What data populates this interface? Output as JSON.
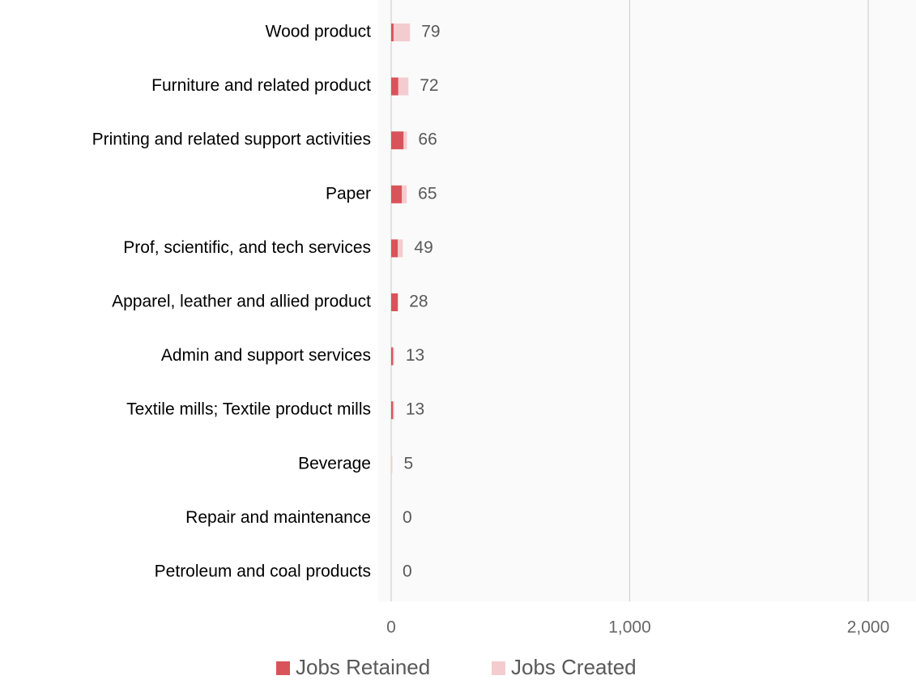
{
  "chart_data": {
    "type": "stacked_barh",
    "categories": [
      "Wood product",
      "Furniture and related product",
      "Printing and related support activities",
      "Paper",
      "Prof, scientific, and tech services",
      "Apparel, leather and allied product",
      "Admin and support services",
      "Textile mills; Textile product mills",
      "Beverage",
      "Repair and maintenance",
      "Petroleum and coal products"
    ],
    "series": [
      {
        "name": "Jobs Retained",
        "color": "#d9535b",
        "values": [
          10,
          30,
          52,
          45,
          28,
          28,
          8,
          8,
          0,
          0,
          0
        ]
      },
      {
        "name": "Jobs Created",
        "color": "#f4cccf",
        "values": [
          69,
          42,
          14,
          20,
          21,
          0,
          5,
          5,
          5,
          0,
          0
        ]
      }
    ],
    "totals": [
      79,
      72,
      66,
      65,
      49,
      28,
      13,
      13,
      5,
      0,
      0
    ],
    "xlim": [
      0,
      2000
    ],
    "xticks": [
      0,
      {
        "value": 1000,
        "label": "1,000"
      },
      {
        "value": 2000,
        "label": "2,000"
      }
    ],
    "grid": true
  }
}
